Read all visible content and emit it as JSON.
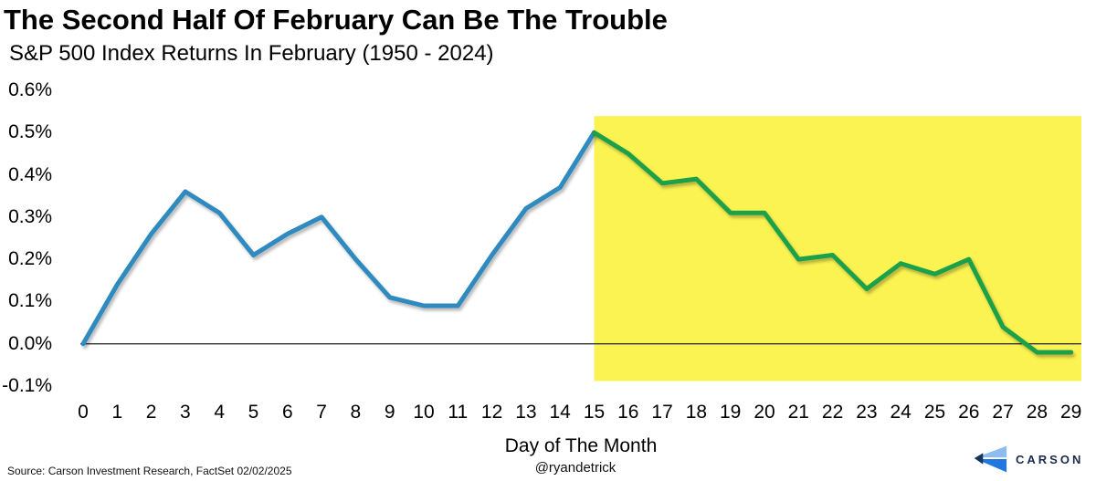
{
  "header": {
    "title": "The Second Half Of February Can Be The Trouble",
    "subtitle": "S&P 500 Index Returns In February (1950 - 2024)"
  },
  "chart_data": {
    "type": "line",
    "title": "The Second Half Of February Can Be The Trouble",
    "subtitle": "S&P 500 Index Returns In February (1950 - 2024)",
    "xlabel": "Day of The Month",
    "ylabel": "",
    "ylim": [
      -0.1,
      0.6
    ],
    "grid": false,
    "legend": "none",
    "x_ticks": [
      0,
      1,
      2,
      3,
      4,
      5,
      6,
      7,
      8,
      9,
      10,
      11,
      12,
      13,
      14,
      15,
      16,
      17,
      18,
      19,
      20,
      21,
      22,
      23,
      24,
      25,
      26,
      27,
      28,
      29
    ],
    "y_ticks": [
      {
        "label": "0.6%",
        "value": 0.6
      },
      {
        "label": "0.5%",
        "value": 0.5
      },
      {
        "label": "0.4%",
        "value": 0.4
      },
      {
        "label": "0.3%",
        "value": 0.3
      },
      {
        "label": "0.2%",
        "value": 0.2
      },
      {
        "label": "0.1%",
        "value": 0.1
      },
      {
        "label": "0.0%",
        "value": 0.0
      },
      {
        "label": "-0.1%",
        "value": -0.1
      }
    ],
    "highlight_region": {
      "from_day": 15,
      "to_day_edge": 29.35,
      "top_value": 0.539,
      "bottom_value": -0.088,
      "color": "#FBF351"
    },
    "series": [
      {
        "name": "first-half-days-0-15",
        "color": "#2E8ABF",
        "start_day": 0,
        "values": [
          0.0,
          0.14,
          0.26,
          0.36,
          0.31,
          0.21,
          0.26,
          0.3,
          0.2,
          0.11,
          0.09,
          0.09,
          0.21,
          0.32,
          0.37,
          0.5
        ]
      },
      {
        "name": "second-half-days-15-29",
        "color": "#1FA04A",
        "start_day": 15,
        "values": [
          0.5,
          0.45,
          0.38,
          0.39,
          0.31,
          0.31,
          0.2,
          0.21,
          0.13,
          0.19,
          0.165,
          0.2,
          0.04,
          -0.02,
          -0.02
        ]
      }
    ]
  },
  "footer": {
    "source": "Source: Carson Investment Research, FactSet 02/02/2025",
    "handle": "@ryandetrick",
    "logo_text": "CARSON"
  },
  "colors": {
    "blue_line": "#2E8ABF",
    "green_line": "#1FA04A",
    "highlight_yellow": "#FBF351",
    "zero_axis": "#333333",
    "logo_light_blue": "#8FBCEE",
    "logo_blue": "#2277DF",
    "logo_navy": "#17365E",
    "logo_text_navy": "#1B2A4C"
  }
}
